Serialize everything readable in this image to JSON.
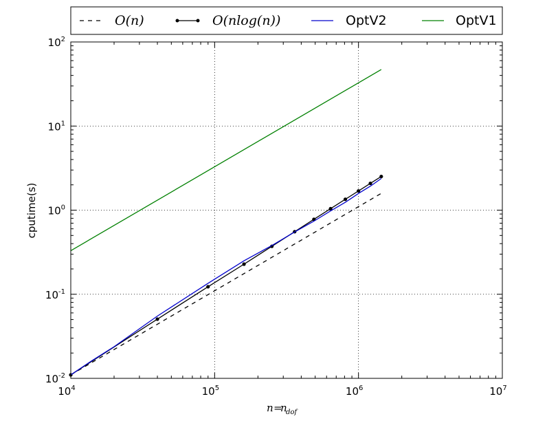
{
  "chart_data": {
    "type": "line",
    "xscale": "log",
    "yscale": "log",
    "xlim": [
      10000,
      10000000
    ],
    "ylim": [
      0.01,
      100
    ],
    "grid": true,
    "grid_style": "dotted",
    "legend_placement": "top (above plot, single row)",
    "xlabel": "n=n_dof",
    "ylabel": "cputime(s)",
    "x_ticks": [
      {
        "value": 10000,
        "base": "10",
        "exp": "4"
      },
      {
        "value": 100000,
        "base": "10",
        "exp": "5"
      },
      {
        "value": 1000000,
        "base": "10",
        "exp": "6"
      },
      {
        "value": 10000000,
        "base": "10",
        "exp": "7"
      }
    ],
    "y_ticks": [
      {
        "value": 0.01,
        "base": "10",
        "exp": "-2"
      },
      {
        "value": 0.1,
        "base": "10",
        "exp": "-1"
      },
      {
        "value": 1,
        "base": "10",
        "exp": "0"
      },
      {
        "value": 10,
        "base": "10",
        "exp": "1"
      },
      {
        "value": 100,
        "base": "10",
        "exp": "2"
      }
    ],
    "series": [
      {
        "name": "O(n)",
        "color": "#000000",
        "style": "dashed",
        "markers": false,
        "x": [
          10000,
          1440000
        ],
        "y": [
          0.011,
          1.584
        ]
      },
      {
        "name": "O(nlog(n))",
        "color": "#000000",
        "style": "solid",
        "markers": true,
        "x": [
          10000,
          40000,
          90000,
          160000,
          250000,
          360000,
          490000,
          640000,
          810000,
          1000000,
          1210000,
          1440000
        ],
        "y": [
          0.011,
          0.0506,
          0.1228,
          0.2279,
          0.3716,
          0.5547,
          0.7778,
          1.0415,
          1.3463,
          1.6928,
          2.0813,
          2.5124
        ]
      },
      {
        "name": "OptV2",
        "color": "#0000cc",
        "style": "solid",
        "markers": false,
        "x": [
          10000,
          14000,
          20000,
          40000,
          90000,
          160000,
          250000,
          360000,
          490000,
          640000,
          810000,
          1000000,
          1210000,
          1440000
        ],
        "y": [
          0.011,
          0.0162,
          0.0238,
          0.055,
          0.135,
          0.25,
          0.38,
          0.55,
          0.74,
          0.98,
          1.24,
          1.58,
          1.93,
          2.38
        ]
      },
      {
        "name": "OptV1",
        "color": "#008000",
        "style": "solid",
        "markers": false,
        "x": [
          10000,
          1440000
        ],
        "y": [
          0.33,
          47
        ]
      }
    ]
  }
}
